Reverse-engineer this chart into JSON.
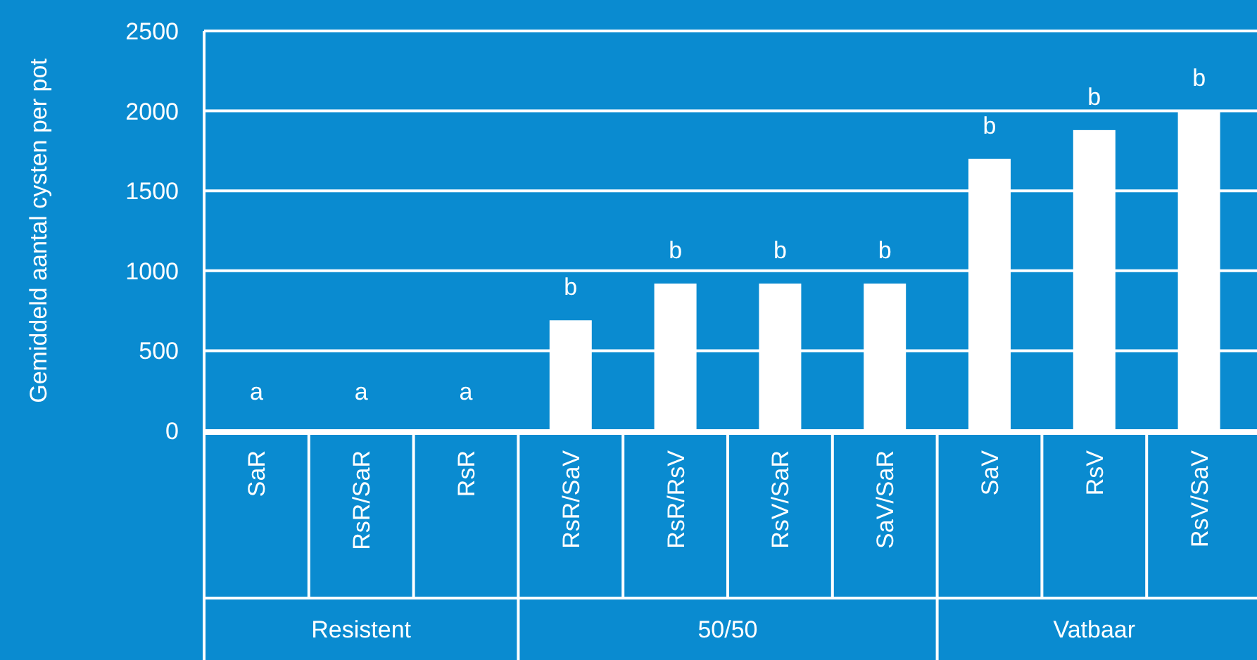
{
  "chart_data": {
    "type": "bar",
    "ylabel": "Gemiddeld aantal cysten per pot",
    "categories": [
      "SaR",
      "RsR/SaR",
      "RsR",
      "RsR/SaV",
      "RsR/RsV",
      "RsV/SaR",
      "SaV/SaR",
      "SaV",
      "RsV",
      "RsV/SaV"
    ],
    "values": [
      0,
      0,
      0,
      690,
      920,
      920,
      920,
      1700,
      1880,
      2000
    ],
    "color": "#ffffff",
    "ylim": [
      0,
      2500
    ],
    "yticks": [
      0,
      500,
      1000,
      1500,
      2000,
      2500
    ],
    "grid": "y",
    "annotations": [
      "a",
      "a",
      "a",
      "b",
      "b",
      "b",
      "b",
      "b",
      "b",
      "b",
      "Resistent",
      "50/50",
      "Vatbaar"
    ]
  }
}
